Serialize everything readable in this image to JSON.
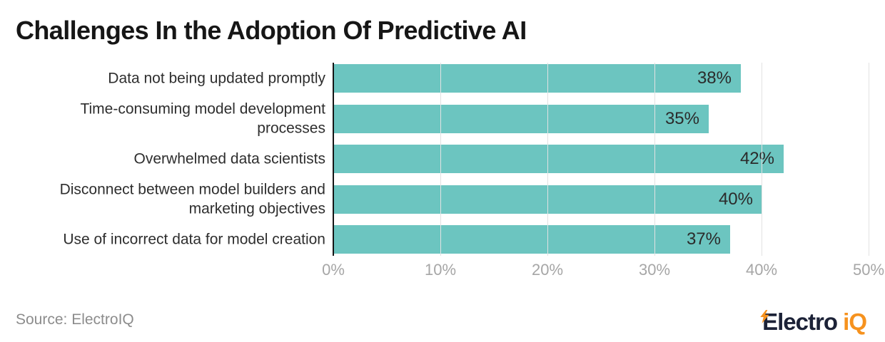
{
  "title": "Challenges In the Adoption Of Predictive AI",
  "footer": {
    "source": "Source: ElectroIQ",
    "logo_text_dark": "Electro",
    "logo_text_accent": "iQ"
  },
  "colors": {
    "bar": "#6cc5c0",
    "axis": "#151515",
    "grid": "#e2e2e2",
    "tick_text": "#a6a6a6",
    "label_text": "#2e2e2e",
    "value_text": "#2b2b2b",
    "source_text": "#8c8c8c",
    "logo_dark": "#1c2237",
    "logo_accent": "#f6921e"
  },
  "chart_data": {
    "type": "bar",
    "orientation": "horizontal",
    "title": "Challenges In the Adoption Of Predictive AI",
    "categories": [
      "Data not being updated promptly",
      "Time-consuming model development processes",
      "Overwhelmed data scientists",
      "Disconnect between model builders and marketing objectives",
      "Use of incorrect data for model creation"
    ],
    "values": [
      38,
      35,
      42,
      40,
      37
    ],
    "value_labels": [
      "38%",
      "35%",
      "42%",
      "40%",
      "37%"
    ],
    "x_tick_labels": [
      "0%",
      "10%",
      "20%",
      "30%",
      "40%",
      "50%"
    ],
    "x_tick_values": [
      0,
      10,
      20,
      30,
      40,
      50
    ],
    "xlim": [
      0,
      50
    ],
    "xlabel": "",
    "ylabel": "",
    "grid": true,
    "legend": false,
    "bar_color": "#6cc5c0"
  }
}
